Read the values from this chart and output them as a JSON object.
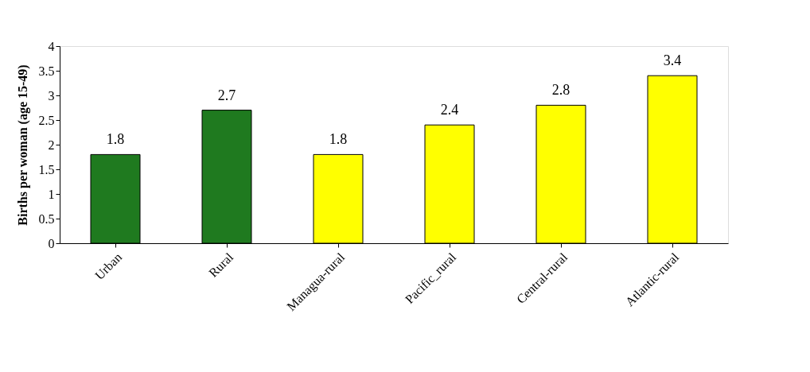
{
  "chart_data": {
    "type": "bar",
    "ylabel": "Births per woman (age 15-49)",
    "categories": [
      "Urban",
      "Rural",
      "Managua-rural",
      "Pacific_rural",
      "Central-rural",
      "Atlantic-rural"
    ],
    "values": [
      1.8,
      2.7,
      1.8,
      2.4,
      2.8,
      3.4
    ],
    "colors": [
      "#1f7a1f",
      "#1f7a1f",
      "#ffff00",
      "#ffff00",
      "#ffff00",
      "#ffff00"
    ],
    "ylim": [
      0,
      4
    ],
    "yticks": [
      0,
      0.5,
      1,
      1.5,
      2,
      2.5,
      3,
      3.5,
      4
    ],
    "data_labels": true,
    "grid": false
  }
}
